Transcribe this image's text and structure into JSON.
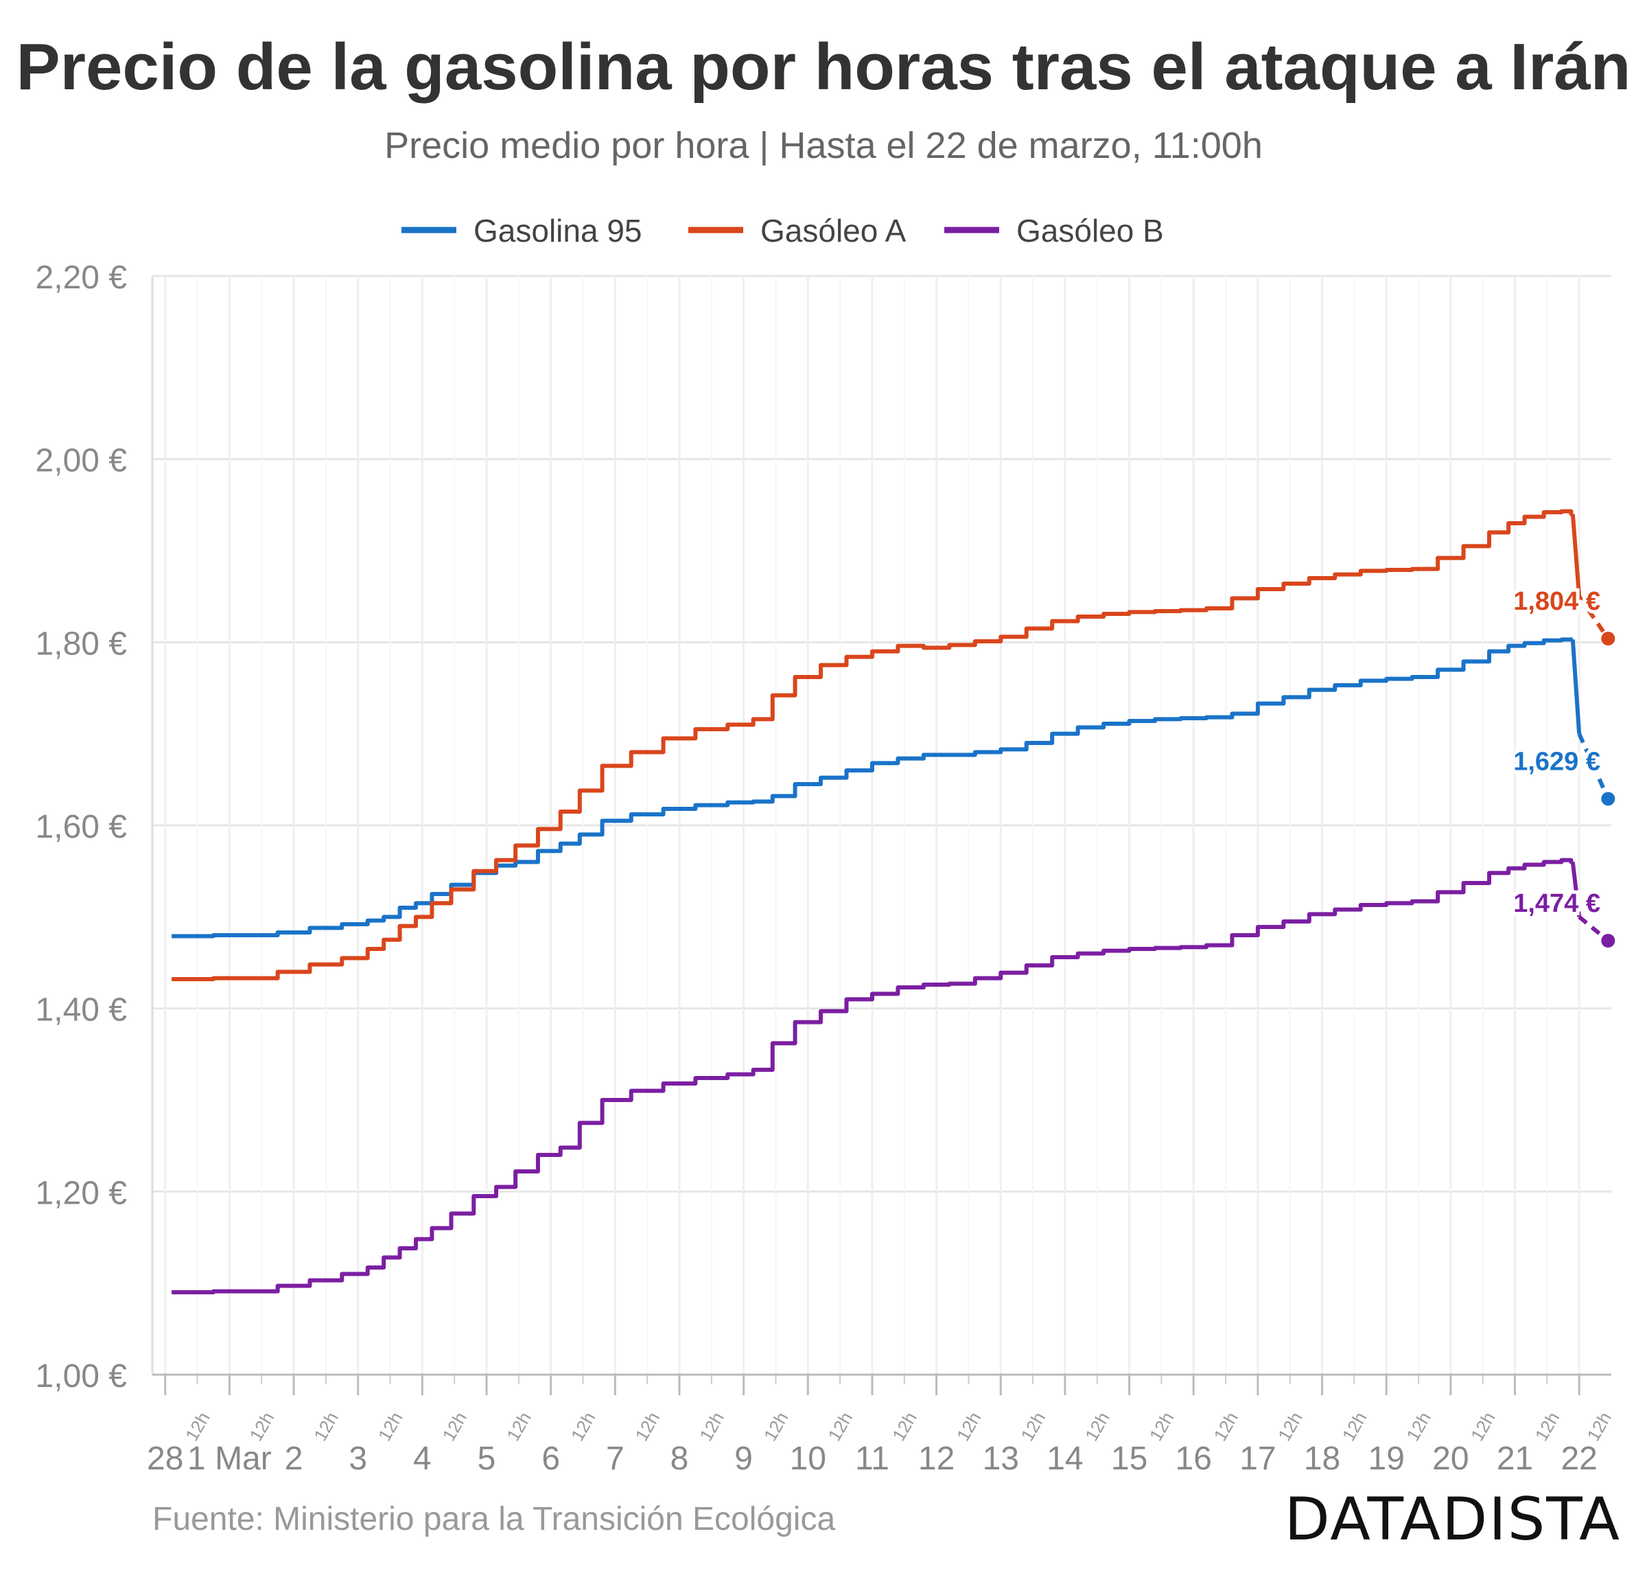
{
  "chart_data": {
    "type": "line",
    "title": "Precio de la gasolina por horas tras el ataque a Irán",
    "subtitle": "Precio medio por hora | Hasta el 22 de marzo, 11:00h",
    "source": "Fuente: Ministerio para la Transición Ecológica",
    "brand": "DATADISTA",
    "ylim": [
      1.0,
      2.2
    ],
    "y_ticks": [
      {
        "value": 1.0,
        "label": "1,00 €"
      },
      {
        "value": 1.2,
        "label": "1,20 €"
      },
      {
        "value": 1.4,
        "label": "1,40 €"
      },
      {
        "value": 1.6,
        "label": "1,60 €"
      },
      {
        "value": 1.8,
        "label": "1,80 €"
      },
      {
        "value": 2.0,
        "label": "2,00 €"
      },
      {
        "value": 2.2,
        "label": "2,20 €"
      }
    ],
    "x_unit": "days since 28 Feb 00:00",
    "xlim": [
      -0.2,
      22.5
    ],
    "x_ticks": [
      {
        "value": 0,
        "label": "28"
      },
      {
        "value": 1,
        "label": "1 Mar"
      },
      {
        "value": 2,
        "label": "2"
      },
      {
        "value": 3,
        "label": "3"
      },
      {
        "value": 4,
        "label": "4"
      },
      {
        "value": 5,
        "label": "5"
      },
      {
        "value": 6,
        "label": "6"
      },
      {
        "value": 7,
        "label": "7"
      },
      {
        "value": 8,
        "label": "8"
      },
      {
        "value": 9,
        "label": "9"
      },
      {
        "value": 10,
        "label": "10"
      },
      {
        "value": 11,
        "label": "11"
      },
      {
        "value": 12,
        "label": "12"
      },
      {
        "value": 13,
        "label": "13"
      },
      {
        "value": 14,
        "label": "14"
      },
      {
        "value": 15,
        "label": "15"
      },
      {
        "value": 16,
        "label": "16"
      },
      {
        "value": 17,
        "label": "17"
      },
      {
        "value": 18,
        "label": "18"
      },
      {
        "value": 19,
        "label": "19"
      },
      {
        "value": 20,
        "label": "20"
      },
      {
        "value": 21,
        "label": "21"
      },
      {
        "value": 22,
        "label": "22"
      }
    ],
    "minor_tick_label": "12h",
    "series": [
      {
        "name": "Gasolina 95",
        "color": "#1a73c8",
        "end_label": "1,629 €",
        "end_value": 1.629,
        "x": [
          0.1,
          0.5,
          1.0,
          1.5,
          2.0,
          2.5,
          3.0,
          3.3,
          3.5,
          3.8,
          4.0,
          4.3,
          4.6,
          5.0,
          5.3,
          5.6,
          6.0,
          6.3,
          6.6,
          7.0,
          7.5,
          8.0,
          8.5,
          9.0,
          9.3,
          9.6,
          10.0,
          10.4,
          10.8,
          11.2,
          11.6,
          12.0,
          12.4,
          12.8,
          13.2,
          13.6,
          14.0,
          14.4,
          14.8,
          15.2,
          15.6,
          16.0,
          16.4,
          16.8,
          17.2,
          17.6,
          18.0,
          18.4,
          18.8,
          19.2,
          19.6,
          20.0,
          20.4,
          20.8,
          21.0,
          21.3,
          21.6,
          21.85,
          21.9
        ],
        "values": [
          1.479,
          1.479,
          1.48,
          1.48,
          1.483,
          1.488,
          1.492,
          1.496,
          1.5,
          1.51,
          1.515,
          1.525,
          1.535,
          1.548,
          1.556,
          1.56,
          1.572,
          1.58,
          1.59,
          1.605,
          1.612,
          1.618,
          1.622,
          1.625,
          1.626,
          1.632,
          1.645,
          1.652,
          1.66,
          1.668,
          1.673,
          1.677,
          1.677,
          1.68,
          1.683,
          1.69,
          1.7,
          1.707,
          1.711,
          1.714,
          1.716,
          1.717,
          1.718,
          1.722,
          1.733,
          1.74,
          1.748,
          1.753,
          1.758,
          1.76,
          1.762,
          1.77,
          1.779,
          1.79,
          1.796,
          1.799,
          1.802,
          1.803,
          1.803
        ],
        "dashed_x": [
          21.9,
          22.0,
          22.45
        ],
        "dashed_values": [
          1.803,
          1.7,
          1.629
        ]
      },
      {
        "name": "Gasóleo A",
        "color": "#d9461c",
        "end_label": "1,804 €",
        "end_value": 1.804,
        "x": [
          0.1,
          0.5,
          1.0,
          1.5,
          2.0,
          2.5,
          3.0,
          3.3,
          3.5,
          3.8,
          4.0,
          4.3,
          4.6,
          5.0,
          5.3,
          5.6,
          6.0,
          6.3,
          6.6,
          7.0,
          7.5,
          8.0,
          8.5,
          9.0,
          9.3,
          9.6,
          10.0,
          10.4,
          10.8,
          11.2,
          11.6,
          12.0,
          12.4,
          12.8,
          13.2,
          13.6,
          14.0,
          14.4,
          14.8,
          15.2,
          15.6,
          16.0,
          16.4,
          16.8,
          17.2,
          17.6,
          18.0,
          18.4,
          18.8,
          19.2,
          19.6,
          20.0,
          20.4,
          20.8,
          21.0,
          21.3,
          21.6,
          21.85,
          21.9
        ],
        "values": [
          1.432,
          1.432,
          1.433,
          1.433,
          1.44,
          1.448,
          1.455,
          1.465,
          1.475,
          1.49,
          1.5,
          1.515,
          1.53,
          1.55,
          1.562,
          1.578,
          1.596,
          1.615,
          1.638,
          1.665,
          1.68,
          1.695,
          1.705,
          1.71,
          1.716,
          1.742,
          1.762,
          1.775,
          1.784,
          1.79,
          1.796,
          1.794,
          1.797,
          1.801,
          1.806,
          1.815,
          1.823,
          1.828,
          1.831,
          1.833,
          1.834,
          1.835,
          1.837,
          1.848,
          1.858,
          1.864,
          1.87,
          1.874,
          1.878,
          1.879,
          1.88,
          1.892,
          1.905,
          1.92,
          1.93,
          1.937,
          1.942,
          1.943,
          1.94
        ],
        "dashed_x": [
          21.9,
          22.0,
          22.45
        ],
        "dashed_values": [
          1.94,
          1.85,
          1.804
        ]
      },
      {
        "name": "Gasóleo B",
        "color": "#7b1fa2",
        "end_label": "1,474 €",
        "end_value": 1.474,
        "x": [
          0.1,
          0.5,
          1.0,
          1.5,
          2.0,
          2.5,
          3.0,
          3.3,
          3.5,
          3.8,
          4.0,
          4.3,
          4.6,
          5.0,
          5.3,
          5.6,
          6.0,
          6.3,
          6.6,
          7.0,
          7.5,
          8.0,
          8.5,
          9.0,
          9.3,
          9.6,
          10.0,
          10.4,
          10.8,
          11.2,
          11.6,
          12.0,
          12.4,
          12.8,
          13.2,
          13.6,
          14.0,
          14.4,
          14.8,
          15.2,
          15.6,
          16.0,
          16.4,
          16.8,
          17.2,
          17.6,
          18.0,
          18.4,
          18.8,
          19.2,
          19.6,
          20.0,
          20.4,
          20.8,
          21.0,
          21.3,
          21.6,
          21.85,
          21.9
        ],
        "values": [
          1.09,
          1.09,
          1.091,
          1.091,
          1.097,
          1.103,
          1.11,
          1.117,
          1.128,
          1.138,
          1.148,
          1.16,
          1.176,
          1.195,
          1.205,
          1.222,
          1.24,
          1.248,
          1.275,
          1.3,
          1.31,
          1.318,
          1.324,
          1.328,
          1.333,
          1.362,
          1.385,
          1.397,
          1.41,
          1.416,
          1.423,
          1.426,
          1.427,
          1.433,
          1.439,
          1.447,
          1.456,
          1.46,
          1.463,
          1.465,
          1.466,
          1.467,
          1.469,
          1.48,
          1.489,
          1.495,
          1.503,
          1.508,
          1.513,
          1.515,
          1.517,
          1.527,
          1.537,
          1.548,
          1.553,
          1.557,
          1.56,
          1.562,
          1.56
        ],
        "dashed_x": [
          21.9,
          22.0,
          22.45
        ],
        "dashed_values": [
          1.56,
          1.5,
          1.474
        ]
      }
    ]
  }
}
